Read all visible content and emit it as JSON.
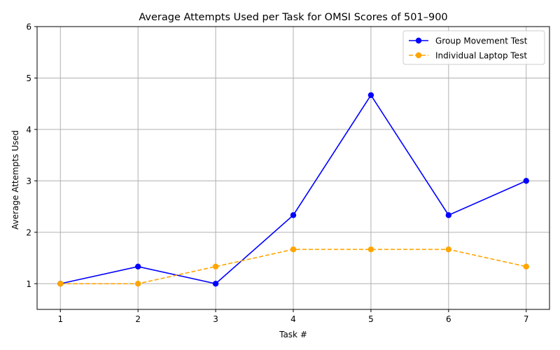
{
  "chart_data": {
    "type": "line",
    "title": "Average Attempts Used per Task for OMSI Scores of 501–900",
    "xlabel": "Task #",
    "ylabel": "Average Attempts Used",
    "x": [
      1,
      2,
      3,
      4,
      5,
      6,
      7
    ],
    "x_ticks": [
      "1",
      "2",
      "3",
      "4",
      "5",
      "6",
      "7"
    ],
    "y_ticks": [
      "1",
      "2",
      "3",
      "4",
      "5",
      "6"
    ],
    "xlim": [
      0.7,
      7.3
    ],
    "ylim": [
      0.5,
      6
    ],
    "grid": true,
    "legend_position": "upper-right",
    "series": [
      {
        "name": "Group Movement Test",
        "values": [
          1,
          1.333,
          1,
          2.333,
          4.667,
          2.333,
          3
        ],
        "color": "#0000ff",
        "line_style": "solid",
        "marker": "circle"
      },
      {
        "name": "Individual Laptop Test",
        "values": [
          1,
          1,
          1.333,
          1.667,
          1.667,
          1.667,
          1.333
        ],
        "color": "#ffa500",
        "line_style": "dashed",
        "marker": "circle"
      }
    ]
  }
}
